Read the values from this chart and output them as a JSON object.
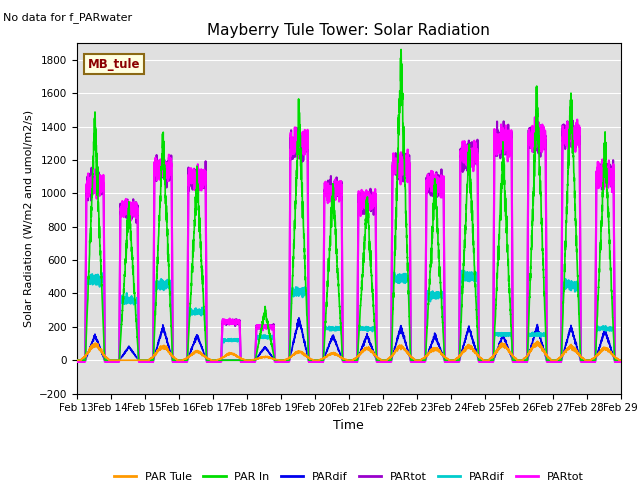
{
  "title": "Mayberry Tule Tower: Solar Radiation",
  "subtitle": "No data for f_PARwater",
  "xlabel": "Time",
  "ylabel": "Solar Radiation (W/m2 and umol/m2/s)",
  "ylim": [
    -200,
    1900
  ],
  "yticks": [
    -200,
    0,
    200,
    400,
    600,
    800,
    1000,
    1200,
    1400,
    1600,
    1800
  ],
  "bg_color": "#e0e0e0",
  "legend_label": "MB_tule",
  "legend_box_color": "#ffffe0",
  "legend_box_edge": "#8b6914",
  "series": [
    {
      "label": "PAR Tule",
      "color": "#ff9900",
      "lw": 1.2
    },
    {
      "label": "PAR In",
      "color": "#00dd00",
      "lw": 1.2
    },
    {
      "label": "PARdif",
      "color": "#0000ee",
      "lw": 1.2
    },
    {
      "label": "PARtot",
      "color": "#9900cc",
      "lw": 1.5
    },
    {
      "label": "PARdif",
      "color": "#00cccc",
      "lw": 1.5
    },
    {
      "label": "PARtot",
      "color": "#ff00ff",
      "lw": 1.5
    }
  ],
  "n_days": 16,
  "start_day": 13,
  "day_start": 0.25,
  "day_end": 0.82,
  "peaks_PAR_Tule": [
    90,
    0,
    80,
    50,
    40,
    20,
    50,
    40,
    70,
    80,
    70,
    80,
    90,
    100,
    80,
    70
  ],
  "peaks_PAR_In": [
    1450,
    920,
    1360,
    1100,
    0,
    300,
    1490,
    1030,
    960,
    1790,
    1060,
    1270,
    1240,
    1570,
    1600,
    1300
  ],
  "peaks_PARdif_b": [
    150,
    80,
    200,
    150,
    0,
    80,
    250,
    150,
    150,
    200,
    150,
    200,
    150,
    200,
    200,
    180
  ],
  "peaks_PARtot_p": [
    1050,
    900,
    1150,
    1090,
    230,
    200,
    1300,
    1020,
    950,
    1160,
    1050,
    1230,
    1310,
    1330,
    1350,
    1100
  ],
  "peaks_PARdif_c": [
    480,
    360,
    450,
    290,
    120,
    140,
    410,
    190,
    190,
    490,
    390,
    500,
    155,
    155,
    450,
    190
  ],
  "peaks_PARtot_m": [
    1050,
    900,
    1150,
    1090,
    230,
    200,
    1300,
    1020,
    950,
    1160,
    1050,
    1230,
    1310,
    1330,
    1350,
    1100
  ]
}
